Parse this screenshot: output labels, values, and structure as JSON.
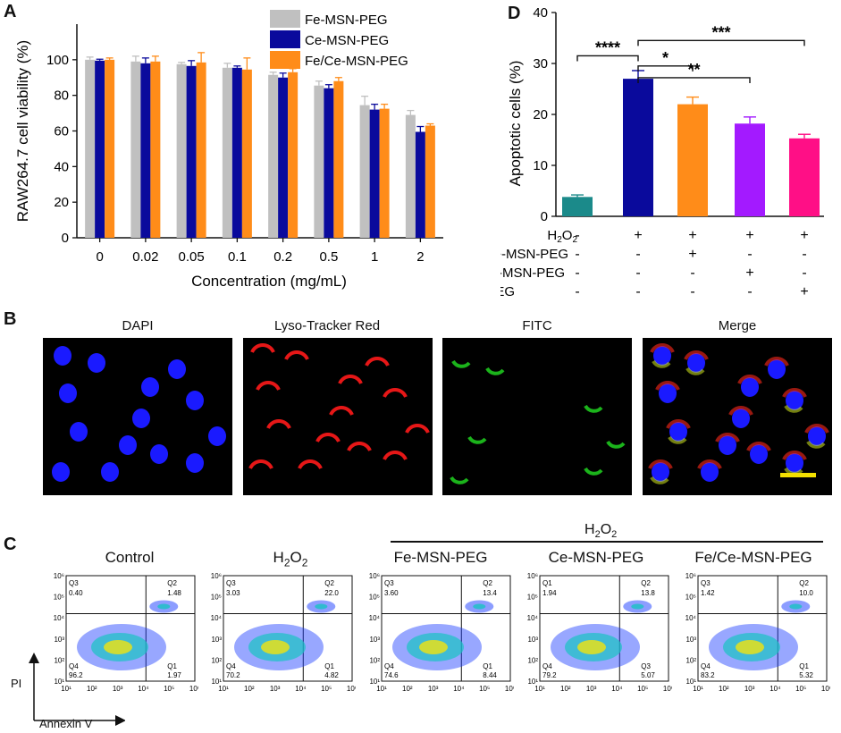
{
  "panels": {
    "a": "A",
    "b": "B",
    "c": "C",
    "d": "D"
  },
  "chart_data": [
    {
      "id": "A",
      "type": "bar",
      "ylabel": "RAW264.7 cell viability (%)",
      "xlabel": "Concentration (mg/mL)",
      "ylim": [
        0,
        120
      ],
      "yticks": [
        0,
        20,
        40,
        60,
        80,
        100
      ],
      "categories": [
        "0",
        "0.02",
        "0.05",
        "0.1",
        "0.2",
        "0.5",
        "1",
        "2"
      ],
      "legend_position": "top-right",
      "series": [
        {
          "name": "Fe-MSN-PEG",
          "color": "#c0c0c0",
          "values": [
            100,
            99,
            97.5,
            95.5,
            91.5,
            85.5,
            74.5,
            69
          ],
          "errors": [
            1.5,
            3,
            1,
            2.5,
            1.5,
            2.5,
            5,
            2.5
          ]
        },
        {
          "name": "Ce-MSN-PEG",
          "color": "#0a0a9c",
          "values": [
            99.5,
            98,
            96.5,
            95.5,
            90,
            84,
            72,
            59.5
          ],
          "errors": [
            0.8,
            3,
            3,
            1,
            2.5,
            2,
            3,
            3
          ]
        },
        {
          "name": "Fe/Ce-MSN-PEG",
          "color": "#ff8c19",
          "values": [
            100,
            99,
            98.5,
            94.5,
            93,
            88,
            72.5,
            63
          ],
          "errors": [
            1,
            3,
            5.5,
            6.5,
            2,
            2,
            2.5,
            1
          ]
        }
      ]
    },
    {
      "id": "D",
      "type": "bar",
      "ylabel": "Apoptotic cells (%)",
      "ylim": [
        0,
        40
      ],
      "yticks": [
        0,
        10,
        20,
        30,
        40
      ],
      "values": [
        3.8,
        27,
        22,
        18.2,
        15.3
      ],
      "errors": [
        0.4,
        1.6,
        1.4,
        1.3,
        0.8
      ],
      "colors": [
        "#1b8a8a",
        "#0a0a9c",
        "#ff8c19",
        "#a31aff",
        "#ff0f86"
      ],
      "table_rows": [
        {
          "label": "H2O2",
          "marks": [
            "-",
            "+",
            "+",
            "+",
            "+"
          ]
        },
        {
          "label": "Fe-MSN-PEG",
          "marks": [
            "-",
            "-",
            "+",
            "-",
            "-"
          ]
        },
        {
          "label": "Ce-MSN-PEG",
          "marks": [
            "-",
            "-",
            "-",
            "+",
            "-"
          ]
        },
        {
          "label": "Fe/Ce-MSN-PEG",
          "marks": [
            "-",
            "-",
            "-",
            "-",
            "+"
          ]
        }
      ],
      "significance": [
        {
          "from": 1,
          "to": 0,
          "label": "****"
        },
        {
          "from": 1,
          "to": 2,
          "label": "*"
        },
        {
          "from": 1,
          "to": 3,
          "label": "**"
        },
        {
          "from": 1,
          "to": 4,
          "label": "***"
        }
      ]
    }
  ],
  "microscopy": [
    {
      "label": "DAPI",
      "channel": "blue"
    },
    {
      "label": "Lyso-Tracker Red",
      "channel": "red"
    },
    {
      "label": "FITC",
      "channel": "green"
    },
    {
      "label": "Merge",
      "channel": "merge"
    }
  ],
  "flow": {
    "group_label": "H2O2",
    "x_axis": "Annexin V",
    "y_axis": "PI",
    "tick_labels": [
      "10¹",
      "10²",
      "10³",
      "10⁴",
      "10⁵",
      "10⁶"
    ],
    "plots": [
      {
        "title": "Control",
        "q_ul": "Q3",
        "v_ul": "0.40",
        "q_ur": "Q2",
        "v_ur": "1.48",
        "q_ll": "Q4",
        "v_ll": "96.2",
        "q_lr": "Q1",
        "v_lr": "1.97"
      },
      {
        "title": "H2O2",
        "q_ul": "Q3",
        "v_ul": "3.03",
        "q_ur": "Q2",
        "v_ur": "22.0",
        "q_ll": "Q4",
        "v_ll": "70.2",
        "q_lr": "Q1",
        "v_lr": "4.82"
      },
      {
        "title": "Fe-MSN-PEG",
        "q_ul": "Q3",
        "v_ul": "3.60",
        "q_ur": "Q2",
        "v_ur": "13.4",
        "q_ll": "Q4",
        "v_ll": "74.6",
        "q_lr": "Q1",
        "v_lr": "8.44"
      },
      {
        "title": "Ce-MSN-PEG",
        "q_ul": "Q1",
        "v_ul": "1.94",
        "q_ur": "Q2",
        "v_ur": "13.8",
        "q_ll": "Q4",
        "v_ll": "79.2",
        "q_lr": "Q3",
        "v_lr": "5.07"
      },
      {
        "title": "Fe/Ce-MSN-PEG",
        "q_ul": "Q3",
        "v_ul": "1.42",
        "q_ur": "Q2",
        "v_ur": "10.0",
        "q_ll": "Q4",
        "v_ll": "83.2",
        "q_lr": "Q1",
        "v_lr": "5.32"
      }
    ]
  }
}
